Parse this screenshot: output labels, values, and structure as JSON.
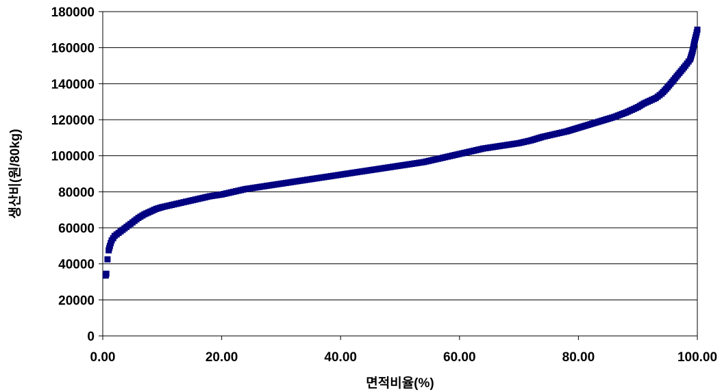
{
  "chart_data": {
    "type": "scatter",
    "title": "",
    "xlabel": "면적비율(%)",
    "ylabel": "생산비(원/80kg)",
    "xlim": [
      0,
      100
    ],
    "ylim": [
      0,
      180000
    ],
    "x_ticks": [
      "0.00",
      "20.00",
      "40.00",
      "60.00",
      "80.00",
      "100.00"
    ],
    "y_ticks": [
      "0",
      "20000",
      "40000",
      "60000",
      "80000",
      "100000",
      "120000",
      "140000",
      "160000",
      "180000"
    ],
    "grid": "horizontal",
    "legend": "none",
    "marker": "square",
    "series_color": "#000080",
    "series": [
      {
        "points": [
          [
            0.5,
            33500
          ],
          [
            0.6,
            34500
          ],
          [
            0.8,
            42500
          ],
          [
            1.0,
            47500
          ],
          [
            1.2,
            50000
          ],
          [
            1.5,
            53000
          ],
          [
            2.0,
            55500
          ],
          [
            3.0,
            58000
          ],
          [
            4.0,
            60500
          ],
          [
            5.0,
            63000
          ],
          [
            6.0,
            65500
          ],
          [
            7.0,
            67500
          ],
          [
            8.0,
            69000
          ],
          [
            9.0,
            70500
          ],
          [
            10.0,
            71500
          ],
          [
            12.0,
            73000
          ],
          [
            14.0,
            74500
          ],
          [
            16.0,
            76000
          ],
          [
            18.0,
            77500
          ],
          [
            20.0,
            78500
          ],
          [
            22.0,
            80000
          ],
          [
            24.0,
            81500
          ],
          [
            26.0,
            82500
          ],
          [
            28.0,
            83500
          ],
          [
            30.0,
            84500
          ],
          [
            32.0,
            85500
          ],
          [
            34.0,
            86500
          ],
          [
            36.0,
            87500
          ],
          [
            38.0,
            88500
          ],
          [
            40.0,
            89500
          ],
          [
            42.0,
            90500
          ],
          [
            44.0,
            91500
          ],
          [
            46.0,
            92500
          ],
          [
            48.0,
            93500
          ],
          [
            50.0,
            94500
          ],
          [
            52.0,
            95500
          ],
          [
            54.0,
            96500
          ],
          [
            56.0,
            98000
          ],
          [
            58.0,
            99500
          ],
          [
            60.0,
            101000
          ],
          [
            62.0,
            102500
          ],
          [
            64.0,
            104000
          ],
          [
            66.0,
            105000
          ],
          [
            68.0,
            106000
          ],
          [
            70.0,
            107000
          ],
          [
            72.0,
            108500
          ],
          [
            74.0,
            110500
          ],
          [
            76.0,
            112000
          ],
          [
            78.0,
            113500
          ],
          [
            80.0,
            115500
          ],
          [
            82.0,
            117500
          ],
          [
            84.0,
            119500
          ],
          [
            86.0,
            121500
          ],
          [
            88.0,
            124000
          ],
          [
            90.0,
            127000
          ],
          [
            91.0,
            129000
          ],
          [
            92.0,
            130500
          ],
          [
            93.0,
            132000
          ],
          [
            94.0,
            134500
          ],
          [
            95.0,
            138000
          ],
          [
            96.0,
            142000
          ],
          [
            97.0,
            146000
          ],
          [
            98.0,
            150000
          ],
          [
            98.8,
            153500
          ],
          [
            99.2,
            158000
          ],
          [
            99.5,
            163000
          ],
          [
            99.8,
            167000
          ],
          [
            100.0,
            170000
          ]
        ]
      }
    ]
  }
}
